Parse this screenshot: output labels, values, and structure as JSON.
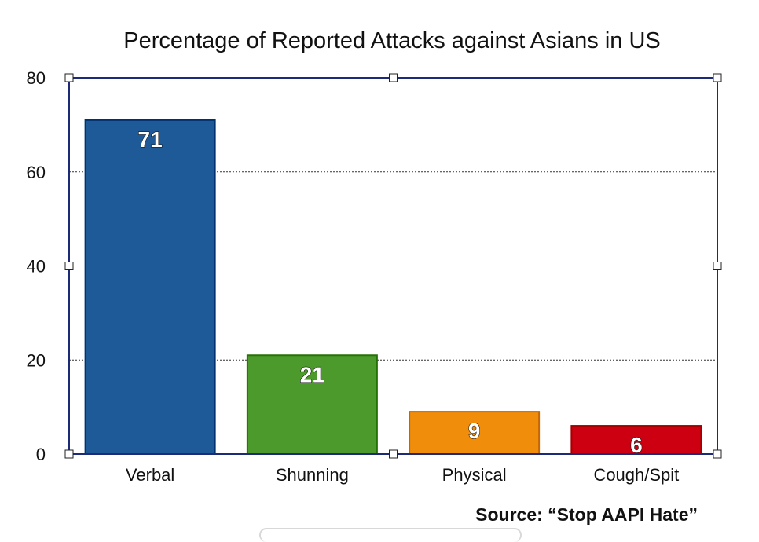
{
  "chart_data": {
    "type": "bar",
    "title": "Percentage of Reported Attacks against Asians in US",
    "categories": [
      "Verbal",
      "Shunning",
      "Physical",
      "Cough/Spit"
    ],
    "values": [
      71,
      21,
      9,
      6
    ],
    "data_labels": [
      "71",
      "21",
      "9",
      "6"
    ],
    "colors": [
      "#1f5a98",
      "#4d9a2c",
      "#f08d0a",
      "#cc0011"
    ],
    "ylim": [
      0,
      80
    ],
    "yticks": [
      0,
      20,
      40,
      60,
      80
    ],
    "xlabel": "",
    "ylabel": "",
    "grid": true,
    "frame_color": "#1c2a78"
  },
  "source_note": "Source: “Stop AAPI Hate”"
}
